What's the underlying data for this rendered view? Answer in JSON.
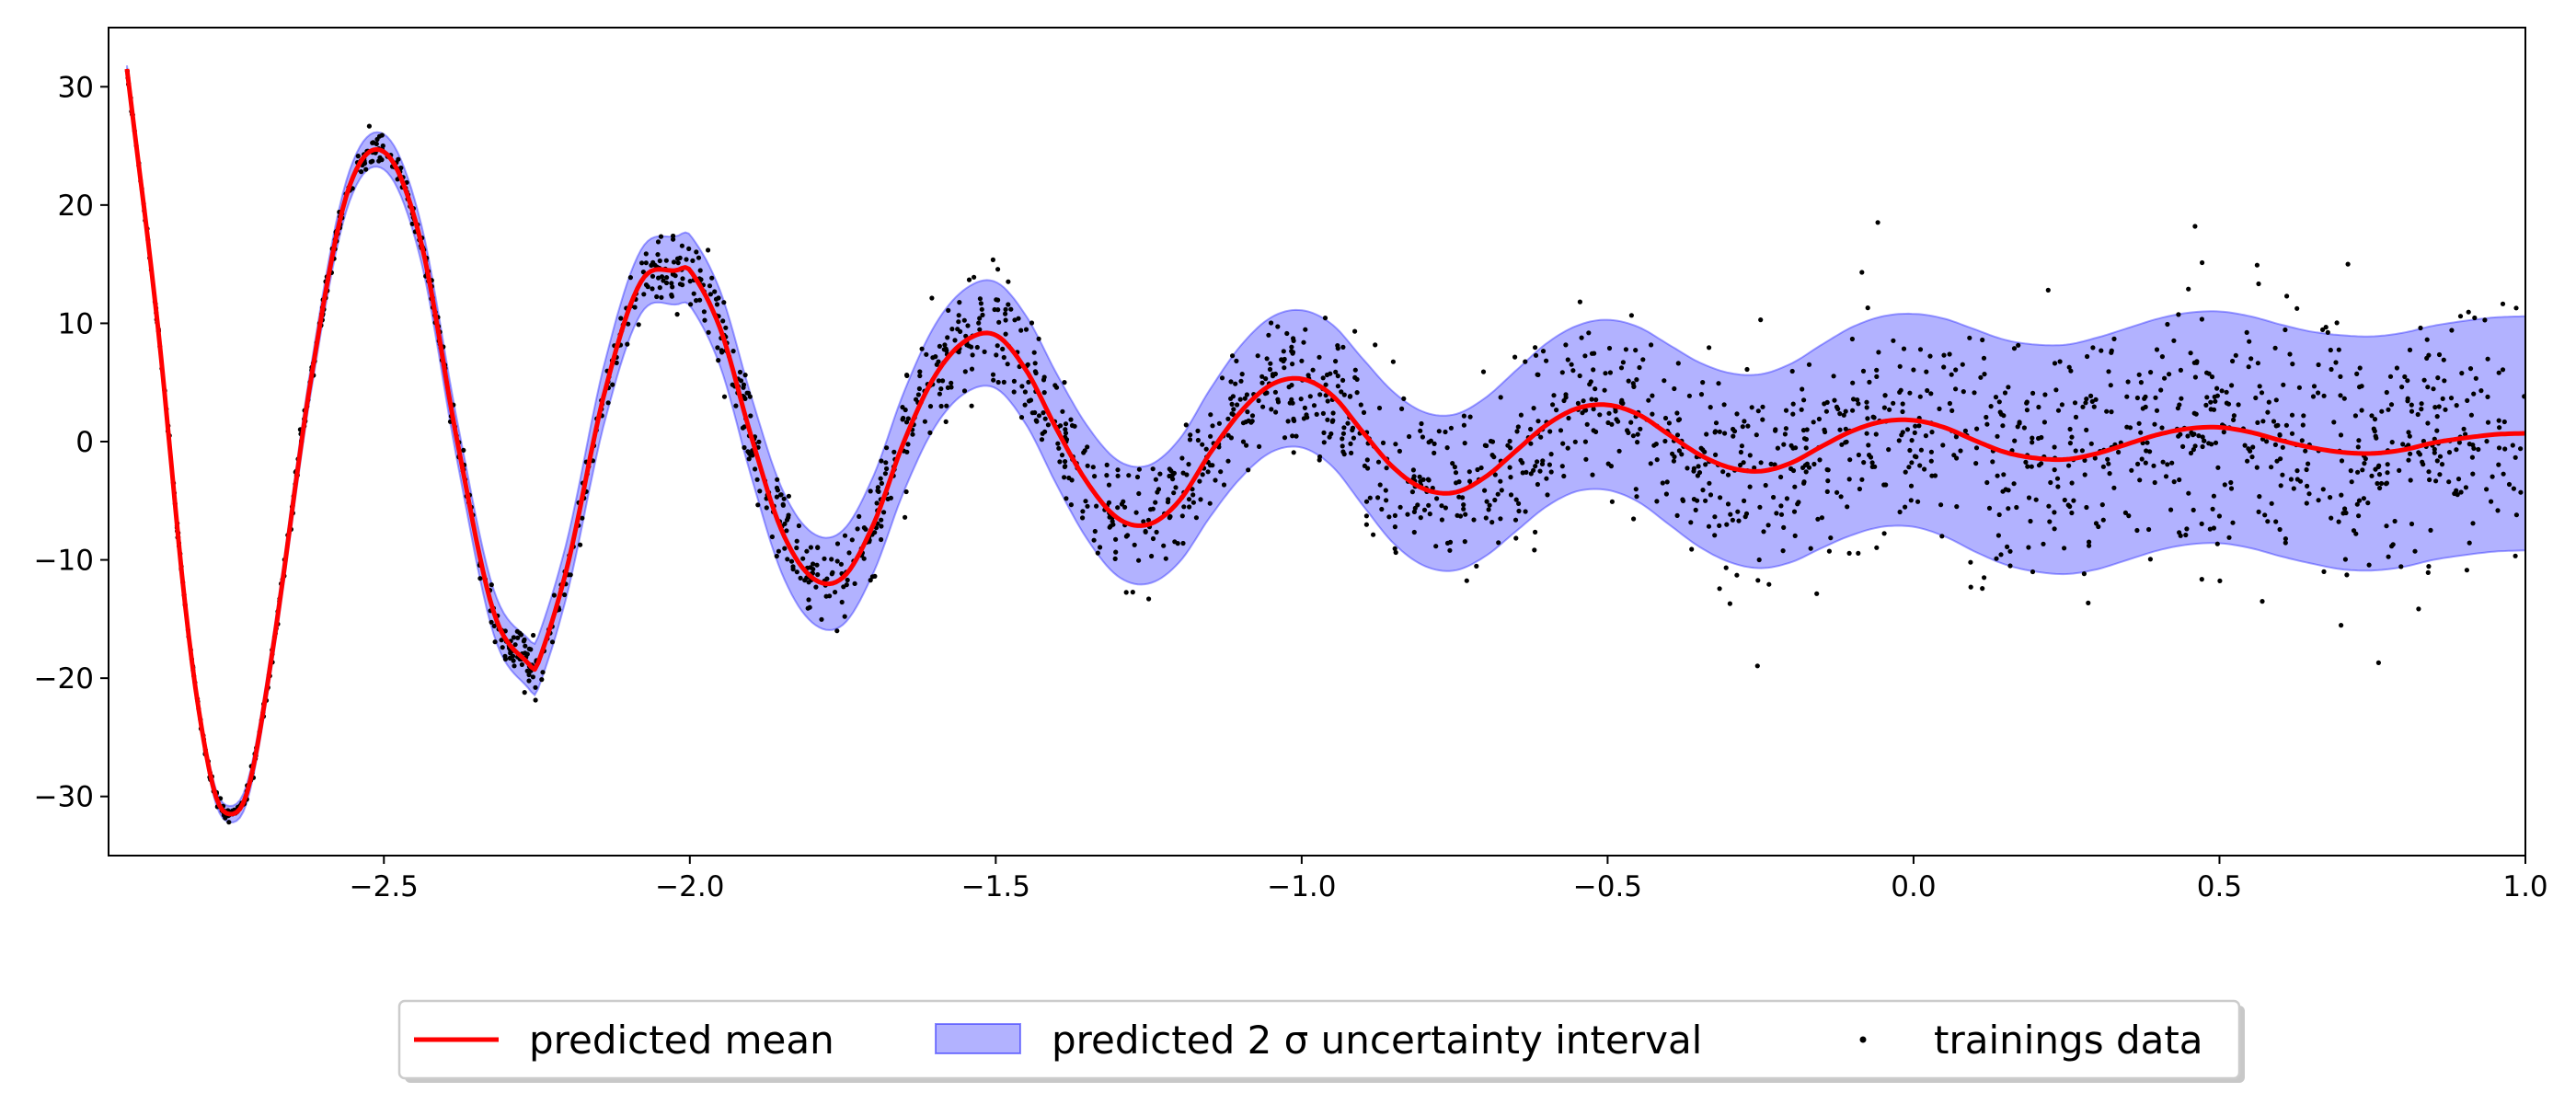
{
  "chart_data": {
    "type": "line",
    "title": "",
    "xlabel": "",
    "ylabel": "",
    "xlim": [
      -2.95,
      1.0
    ],
    "ylim": [
      -35,
      35
    ],
    "x_ticks": [
      -2.5,
      -2.0,
      -1.5,
      -1.0,
      -0.5,
      0.0,
      0.5,
      1.0
    ],
    "x_tick_labels": [
      "−2.5",
      "−2.0",
      "−1.5",
      "−1.0",
      "−0.5",
      "0.0",
      "0.5",
      "1.0"
    ],
    "y_ticks": [
      30,
      20,
      10,
      0,
      -10,
      -20,
      -30
    ],
    "y_tick_labels": [
      "30",
      "20",
      "10",
      "0",
      "−10",
      "−20",
      "−30"
    ],
    "grid": false,
    "legend_position": "bottom-center",
    "series": [
      {
        "name": "predicted mean",
        "kind": "line",
        "color": "#ff0000",
        "x": [
          -2.92,
          -2.87,
          -2.82,
          -2.78,
          -2.75,
          -2.72,
          -2.68,
          -2.62,
          -2.56,
          -2.5,
          -2.44,
          -2.38,
          -2.32,
          -2.26,
          -2.25,
          -2.2,
          -2.14,
          -2.08,
          -2.02,
          -2.0,
          -1.95,
          -1.9,
          -1.85,
          -1.8,
          -1.75,
          -1.7,
          -1.65,
          -1.6,
          -1.55,
          -1.5,
          -1.45,
          -1.4,
          -1.35,
          -1.3,
          -1.25,
          -1.2,
          -1.15,
          -1.1,
          -1.05,
          -1.0,
          -0.95,
          -0.9,
          -0.85,
          -0.8,
          -0.75,
          -0.7,
          -0.65,
          -0.6,
          -0.55,
          -0.5,
          -0.45,
          -0.4,
          -0.35,
          -0.3,
          -0.25,
          -0.2,
          -0.15,
          -0.1,
          -0.05,
          0.0,
          0.05,
          0.1,
          0.15,
          0.2,
          0.25,
          0.3,
          0.35,
          0.4,
          0.45,
          0.5,
          0.55,
          0.6,
          0.65,
          0.7,
          0.75,
          0.8,
          0.85,
          0.9,
          0.95,
          1.0
        ],
        "values": [
          31.5,
          10.0,
          -16.0,
          -29.0,
          -31.5,
          -29.0,
          -17.0,
          5.0,
          21.0,
          24.5,
          17.0,
          0.0,
          -14.5,
          -19.0,
          -19.0,
          -10.5,
          4.0,
          13.5,
          14.5,
          14.5,
          9.5,
          0.5,
          -7.5,
          -11.5,
          -11.5,
          -7.0,
          0.0,
          5.5,
          8.5,
          9.0,
          6.0,
          1.0,
          -3.5,
          -6.5,
          -7.0,
          -5.0,
          -1.0,
          2.5,
          4.8,
          5.3,
          3.9,
          0.8,
          -2.2,
          -4.0,
          -4.3,
          -3.0,
          -0.8,
          1.4,
          2.8,
          3.1,
          2.3,
          0.6,
          -1.1,
          -2.2,
          -2.5,
          -1.8,
          -0.4,
          0.9,
          1.7,
          1.8,
          1.2,
          0.1,
          -0.9,
          -1.4,
          -1.5,
          -1.0,
          -0.2,
          0.6,
          1.1,
          1.2,
          0.8,
          0.1,
          -0.5,
          -0.9,
          -1.0,
          -0.7,
          -0.1,
          0.3,
          0.6,
          0.7
        ]
      },
      {
        "name": "predicted 2 σ uncertainty interval",
        "kind": "band",
        "color": "#0000ff",
        "opacity": 0.3,
        "x": [
          -2.92,
          -2.87,
          -2.82,
          -2.78,
          -2.75,
          -2.72,
          -2.68,
          -2.62,
          -2.56,
          -2.5,
          -2.44,
          -2.38,
          -2.32,
          -2.26,
          -2.25,
          -2.2,
          -2.14,
          -2.08,
          -2.02,
          -2.0,
          -1.95,
          -1.9,
          -1.85,
          -1.8,
          -1.75,
          -1.7,
          -1.65,
          -1.6,
          -1.55,
          -1.5,
          -1.45,
          -1.4,
          -1.35,
          -1.3,
          -1.25,
          -1.2,
          -1.15,
          -1.1,
          -1.05,
          -1.0,
          -0.95,
          -0.9,
          -0.85,
          -0.8,
          -0.75,
          -0.7,
          -0.65,
          -0.6,
          -0.55,
          -0.5,
          -0.45,
          -0.4,
          -0.35,
          -0.3,
          -0.25,
          -0.2,
          -0.15,
          -0.1,
          -0.05,
          0.0,
          0.05,
          0.1,
          0.15,
          0.2,
          0.25,
          0.3,
          0.35,
          0.4,
          0.45,
          0.5,
          0.55,
          0.6,
          0.65,
          0.7,
          0.75,
          0.8,
          0.85,
          0.9,
          0.95,
          1.0
        ],
        "half_width": [
          0.3,
          0.4,
          0.5,
          0.6,
          0.7,
          0.8,
          0.9,
          1.1,
          1.3,
          1.5,
          1.6,
          1.7,
          1.9,
          2.1,
          2.2,
          2.3,
          2.5,
          2.7,
          2.9,
          3.0,
          3.2,
          3.4,
          3.6,
          3.8,
          4.0,
          4.1,
          4.2,
          4.3,
          4.4,
          4.5,
          4.6,
          4.7,
          4.8,
          4.9,
          5.0,
          5.2,
          5.4,
          5.6,
          5.7,
          5.8,
          6.0,
          6.2,
          6.4,
          6.5,
          6.6,
          6.7,
          6.8,
          6.9,
          7.0,
          7.2,
          7.4,
          7.6,
          7.8,
          8.0,
          8.2,
          8.4,
          8.6,
          8.8,
          8.9,
          9.0,
          9.2,
          9.4,
          9.5,
          9.6,
          9.7,
          9.8,
          9.8,
          9.8,
          9.8,
          9.8,
          9.8,
          9.8,
          9.8,
          9.9,
          9.9,
          9.9,
          9.9,
          9.9,
          9.9,
          9.9
        ]
      },
      {
        "name": "trainings data",
        "kind": "scatter",
        "color": "#000000",
        "marker": "point",
        "count": 2400,
        "x_range": [
          -2.95,
          1.0
        ],
        "outliers": [
          {
            "x": 0.46,
            "y": 18.2
          },
          {
            "x": 0.71,
            "y": 15.0
          },
          {
            "x": 0.22,
            "y": 12.8
          },
          {
            "x": 0.76,
            "y": -18.7
          },
          {
            "x": -0.3,
            "y": -13.7
          },
          {
            "x": 0.57,
            "y": -13.5
          },
          {
            "x": -2.27,
            "y": -21.2
          },
          {
            "x": -0.25,
            "y": 10.3
          },
          {
            "x": 0.61,
            "y": 12.3
          },
          {
            "x": -1.25,
            "y": -13.3
          }
        ]
      }
    ]
  },
  "legend": {
    "items": [
      {
        "label": "predicted mean"
      },
      {
        "label": "predicted 2 σ uncertainty interval"
      },
      {
        "label": "trainings data"
      }
    ]
  }
}
